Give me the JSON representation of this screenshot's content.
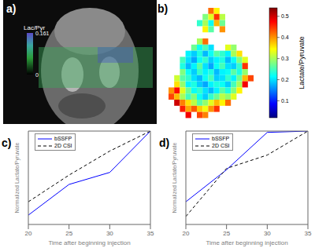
{
  "chart_data": [
    {
      "type": "image",
      "title": "a)",
      "colorbar_label": "Lac/Pyr",
      "colorbar_range": [
        0,
        0.161
      ],
      "colorbar_ticks": [
        0,
        0.161
      ]
    },
    {
      "type": "heatmap",
      "title": "b)",
      "colorbar_label": "Lactate/Pyruvate",
      "colorbar_range": [
        0.02,
        0.54
      ],
      "colorbar_ticks": [
        0.1,
        0.2,
        0.3,
        0.4,
        0.5
      ],
      "cells": [
        [
          null,
          null,
          null,
          null,
          null,
          null,
          null,
          0.42,
          0.35,
          null,
          null,
          null,
          null,
          null,
          null,
          null
        ],
        [
          null,
          null,
          null,
          null,
          null,
          null,
          0.28,
          0.33,
          0.45,
          0.31,
          null,
          null,
          null,
          null,
          null,
          null
        ],
        [
          null,
          null,
          null,
          null,
          null,
          0.24,
          0.3,
          0.22,
          0.38,
          0.27,
          null,
          null,
          null,
          null,
          null,
          null
        ],
        [
          null,
          null,
          null,
          null,
          null,
          null,
          0.35,
          0.26,
          null,
          0.4,
          null,
          null,
          null,
          null,
          null,
          null
        ],
        [
          null,
          null,
          null,
          null,
          null,
          null,
          null,
          null,
          null,
          null,
          null,
          null,
          null,
          null,
          null,
          null
        ],
        [
          null,
          null,
          null,
          null,
          null,
          0.3,
          0.42,
          null,
          null,
          null,
          null,
          null,
          null,
          null,
          null,
          null
        ],
        [
          null,
          null,
          null,
          null,
          0.27,
          0.22,
          0.25,
          0.2,
          null,
          null,
          0.33,
          0.29,
          null,
          null,
          null,
          null
        ],
        [
          null,
          null,
          null,
          0.21,
          0.19,
          0.23,
          0.18,
          0.22,
          0.26,
          0.24,
          0.21,
          0.3,
          0.36,
          null,
          null,
          null
        ],
        [
          null,
          null,
          0.25,
          0.2,
          0.17,
          0.22,
          0.24,
          0.19,
          0.21,
          0.23,
          0.18,
          0.22,
          0.28,
          0.33,
          null,
          null
        ],
        [
          null,
          null,
          0.23,
          0.18,
          0.21,
          0.26,
          0.2,
          0.17,
          0.22,
          0.25,
          0.2,
          0.19,
          0.24,
          0.45,
          null,
          null
        ],
        [
          null,
          null,
          0.28,
          0.22,
          0.19,
          0.24,
          0.21,
          0.23,
          0.18,
          0.21,
          0.22,
          0.26,
          0.23,
          0.29,
          null,
          null
        ],
        [
          null,
          0.32,
          0.26,
          0.24,
          0.2,
          0.18,
          0.22,
          0.25,
          0.19,
          0.2,
          0.24,
          0.21,
          0.27,
          0.38,
          0.44,
          null
        ],
        [
          null,
          0.36,
          0.29,
          0.21,
          0.23,
          0.19,
          0.17,
          0.21,
          0.23,
          0.22,
          0.19,
          0.25,
          0.3,
          0.48,
          null,
          null
        ],
        [
          0.4,
          0.47,
          0.33,
          0.27,
          0.22,
          0.24,
          0.2,
          0.18,
          0.21,
          0.26,
          0.23,
          0.28,
          0.35,
          null,
          null,
          null
        ],
        [
          0.44,
          0.38,
          0.3,
          0.25,
          0.28,
          0.22,
          0.19,
          0.24,
          0.27,
          0.31,
          0.29,
          0.33,
          null,
          null,
          null,
          null
        ],
        [
          null,
          0.5,
          0.41,
          0.36,
          0.31,
          0.26,
          0.29,
          0.33,
          0.38,
          0.35,
          0.42,
          null,
          null,
          null,
          null,
          null
        ],
        [
          null,
          null,
          0.46,
          0.39,
          0.43,
          0.37,
          0.34,
          0.4,
          0.45,
          null,
          null,
          null,
          null,
          null,
          null,
          null
        ],
        [
          null,
          null,
          null,
          0.48,
          null,
          0.44,
          0.41,
          null,
          null,
          null,
          null,
          null,
          null,
          null,
          null,
          null
        ]
      ]
    },
    {
      "type": "line",
      "title": "c)",
      "x": [
        20,
        25,
        30,
        35
      ],
      "xlim": [
        20,
        35
      ],
      "xticks": [
        20,
        25,
        30,
        35
      ],
      "ylim": [
        0.3,
        1
      ],
      "tick_labels": "x",
      "x_label": "Time after beginning injection",
      "y_label": "Normalized Lactate/Pyruvate",
      "legend": "upper left",
      "series": [
        {
          "name": "bSSFP",
          "color": "#0000ff",
          "line_style": "solid",
          "values": [
            0.37,
            0.6,
            0.69,
            1.0
          ]
        },
        {
          "name": "2D CSI",
          "color": "#000000",
          "line_style": "dashed",
          "values": [
            0.47,
            0.67,
            0.85,
            1.0
          ]
        }
      ]
    },
    {
      "type": "line",
      "title": "d)",
      "x": [
        20,
        25,
        30,
        35
      ],
      "xlim": [
        20,
        35
      ],
      "xticks": [
        20,
        25,
        30,
        35
      ],
      "ylim": [
        0.3,
        1
      ],
      "tick_labels": "x",
      "x_label": "Time after beginning injection",
      "y_label": "Normalized Lactate/Pyruvate",
      "legend": "upper left",
      "series": [
        {
          "name": "bSSFP",
          "color": "#0000ff",
          "line_style": "solid",
          "values": [
            0.47,
            0.71,
            0.99,
            1.0
          ]
        },
        {
          "name": "2D CSI",
          "color": "#000000",
          "line_style": "dashed",
          "values": [
            0.36,
            0.72,
            0.82,
            1.0
          ]
        }
      ]
    }
  ]
}
